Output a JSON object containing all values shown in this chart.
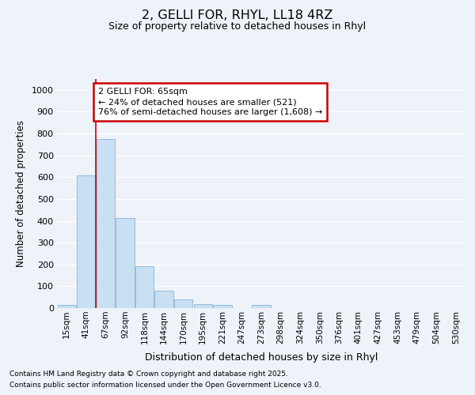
{
  "title_line1": "2, GELLI FOR, RHYL, LL18 4RZ",
  "title_line2": "Size of property relative to detached houses in Rhyl",
  "xlabel": "Distribution of detached houses by size in Rhyl",
  "ylabel": "Number of detached properties",
  "categories": [
    "15sqm",
    "41sqm",
    "67sqm",
    "92sqm",
    "118sqm",
    "144sqm",
    "170sqm",
    "195sqm",
    "221sqm",
    "247sqm",
    "273sqm",
    "298sqm",
    "324sqm",
    "350sqm",
    "376sqm",
    "401sqm",
    "427sqm",
    "453sqm",
    "479sqm",
    "504sqm",
    "530sqm"
  ],
  "values": [
    13,
    607,
    775,
    413,
    193,
    78,
    40,
    17,
    14,
    0,
    13,
    0,
    0,
    0,
    0,
    0,
    0,
    0,
    0,
    0,
    0
  ],
  "bar_color": "#c9dff2",
  "bar_edge_color": "#8ab4d8",
  "bg_color": "#eef2f9",
  "grid_color": "#ffffff",
  "vline_pos": 1.5,
  "vline_color": "#cc0000",
  "ann_line1": "2 GELLI FOR: 65sqm",
  "ann_line2": "← 24% of detached houses are smaller (521)",
  "ann_line3": "76% of semi-detached houses are larger (1,608) →",
  "annotation_box_color": "#ffffff",
  "annotation_box_edge": "#cc0000",
  "ylim": [
    0,
    1050
  ],
  "yticks": [
    0,
    100,
    200,
    300,
    400,
    500,
    600,
    700,
    800,
    900,
    1000
  ],
  "footer_line1": "Contains HM Land Registry data © Crown copyright and database right 2025.",
  "footer_line2": "Contains public sector information licensed under the Open Government Licence v3.0."
}
